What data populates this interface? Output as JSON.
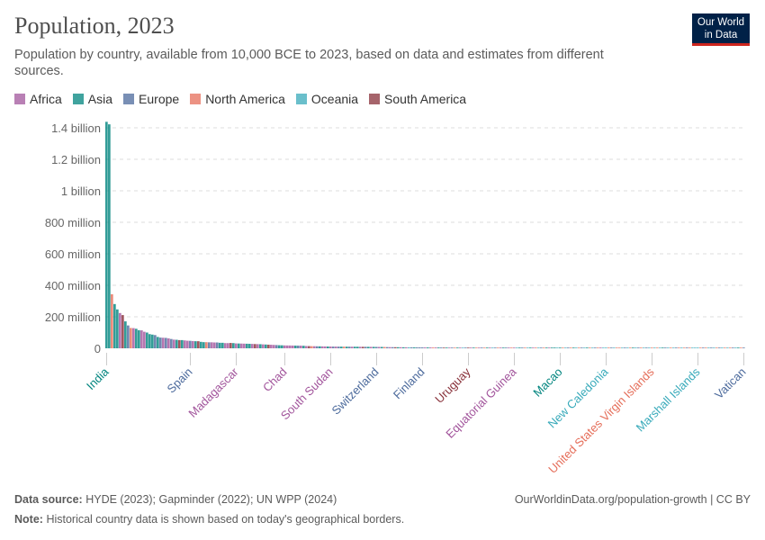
{
  "header": {
    "title": "Population, 2023",
    "subtitle": "Population by country, available from 10,000 BCE to 2023, based on data and estimates from different sources.",
    "logo": "Our World in Data"
  },
  "legend": [
    {
      "name": "Africa",
      "code": "A",
      "color": "#A2559C"
    },
    {
      "name": "Asia",
      "code": "S",
      "color": "#00847E"
    },
    {
      "name": "Europe",
      "code": "E",
      "color": "#4C6A9C"
    },
    {
      "name": "North America",
      "code": "N",
      "color": "#E56E5A"
    },
    {
      "name": "Oceania",
      "code": "O",
      "color": "#38AABA"
    },
    {
      "name": "South America",
      "code": "M",
      "color": "#883039"
    }
  ],
  "chart_data": {
    "type": "bar",
    "title": "Population, 2023",
    "unit": "millions",
    "ylim": [
      0,
      1400
    ],
    "yticks": [
      {
        "v": 0,
        "label": "0"
      },
      {
        "v": 200,
        "label": "200 million"
      },
      {
        "v": 400,
        "label": "400 million"
      },
      {
        "v": 600,
        "label": "600 million"
      },
      {
        "v": 800,
        "label": "800 million"
      },
      {
        "v": 1000,
        "label": "1 billion"
      },
      {
        "v": 1200,
        "label": "1.2 billion"
      },
      {
        "v": 1400,
        "label": "1.4 billion"
      }
    ],
    "grid": true,
    "legend_placement": "top",
    "xlabels": [
      {
        "i": 0,
        "name": "India"
      },
      {
        "i": 31,
        "name": "Spain"
      },
      {
        "i": 48,
        "name": "Madagascar"
      },
      {
        "i": 66,
        "name": "Chad"
      },
      {
        "i": 83,
        "name": "South Sudan"
      },
      {
        "i": 100,
        "name": "Switzerland"
      },
      {
        "i": 117,
        "name": "Finland"
      },
      {
        "i": 134,
        "name": "Uruguay"
      },
      {
        "i": 151,
        "name": "Equatorial Guinea"
      },
      {
        "i": 168,
        "name": "Macao"
      },
      {
        "i": 185,
        "name": "New Caledonia"
      },
      {
        "i": 202,
        "name": "United States Virgin Islands"
      },
      {
        "i": 219,
        "name": "Marshall Islands"
      },
      {
        "i": 236,
        "name": "Vatican"
      }
    ],
    "regions": "SSNSSAMSENASSAASSSESEAEAEASMSAAEASMSSNEAAESSAAMSASAASSAMASASMAAESSAAAASEASAMNAESAASAEAESNSEASSAMESASEASNEAEMSASAOESEEEASANASEMSAENSAOEMASNAENSAOENASEANAOSENOSANOENSASSOSNOENSONEOSNOENAOONEONNOEONSOENOEONONOSEONOENONENOOONENOEONEONONEOSNE",
    "values": [
      1438,
      1422,
      343,
      281,
      247,
      224,
      211,
      171,
      145,
      129,
      128,
      124,
      115,
      114,
      105,
      100,
      90,
      87,
      84,
      72,
      68,
      67,
      66,
      63,
      59,
      55,
      54,
      52,
      52,
      50,
      48,
      47.5,
      46,
      45,
      45,
      41,
      39,
      39,
      38,
      38,
      37,
      37,
      35,
      35,
      33,
      33,
      34,
      33,
      31,
      30.5,
      30,
      29.5,
      29,
      28.5,
      28,
      27,
      26.5,
      26,
      25,
      24,
      23,
      22.5,
      21.5,
      20.5,
      19.5,
      19,
      18.3,
      18,
      17.8,
      17.5,
      17.2,
      17,
      16.8,
      16,
      14.5,
      14,
      13.5,
      13.2,
      12.8,
      12.5,
      12.2,
      11.8,
      11.4,
      11.1,
      10.9,
      10.8,
      10.6,
      10.5,
      10.4,
      10.3,
      10.2,
      10.1,
      10,
      9.8,
      9.6,
      9.5,
      9.4,
      9.3,
      9.1,
      9,
      8.8,
      8.7,
      8.5,
      8.2,
      7.6,
      7.3,
      7.1,
      6.9,
      6.8,
      6.7,
      6.5,
      6.3,
      6.1,
      6,
      5.9,
      5.8,
      5.7,
      5.6,
      5.5,
      5.4,
      5.3,
      5.2,
      5.1,
      5,
      4.9,
      4.6,
      4.4,
      4.1,
      3.9,
      3.8,
      3.7,
      3.6,
      3.5,
      3.45,
      3.4,
      3.2,
      3.1,
      3,
      2.9,
      2.8,
      2.7,
      2.6,
      2.5,
      2.4,
      2.3,
      2.2,
      2.1,
      2,
      1.9,
      1.85,
      1.8,
      1.7,
      1.6,
      1.5,
      1.4,
      1.35,
      1.3,
      1.2,
      1.15,
      1.1,
      1.05,
      1,
      0.95,
      0.9,
      0.85,
      0.8,
      0.75,
      0.72,
      0.7,
      0.66,
      0.62,
      0.6,
      0.58,
      0.55,
      0.52,
      0.5,
      0.48,
      0.45,
      0.42,
      0.4,
      0.38,
      0.36,
      0.34,
      0.32,
      0.3,
      0.29,
      0.28,
      0.27,
      0.26,
      0.25,
      0.23,
      0.21,
      0.2,
      0.19,
      0.18,
      0.17,
      0.16,
      0.14,
      0.13,
      0.12,
      0.11,
      0.105,
      0.1,
      0.1,
      0.09,
      0.09,
      0.08,
      0.08,
      0.07,
      0.07,
      0.06,
      0.06,
      0.05,
      0.05,
      0.05,
      0.045,
      0.045,
      0.042,
      0.041,
      0.04,
      0.04,
      0.038,
      0.036,
      0.035,
      0.033,
      0.03,
      0.028,
      0.025,
      0.02,
      0.018,
      0.015,
      0.012,
      0.01,
      0.006,
      0.003,
      0.002,
      0.0005
    ]
  },
  "footer": {
    "source_label": "Data source:",
    "source": "HYDE (2023); Gapminder (2022); UN WPP (2024)",
    "note_label": "Note:",
    "note": "Historical country data is shown based on today's geographical borders.",
    "url": "OurWorldinData.org/population-growth | CC BY"
  }
}
